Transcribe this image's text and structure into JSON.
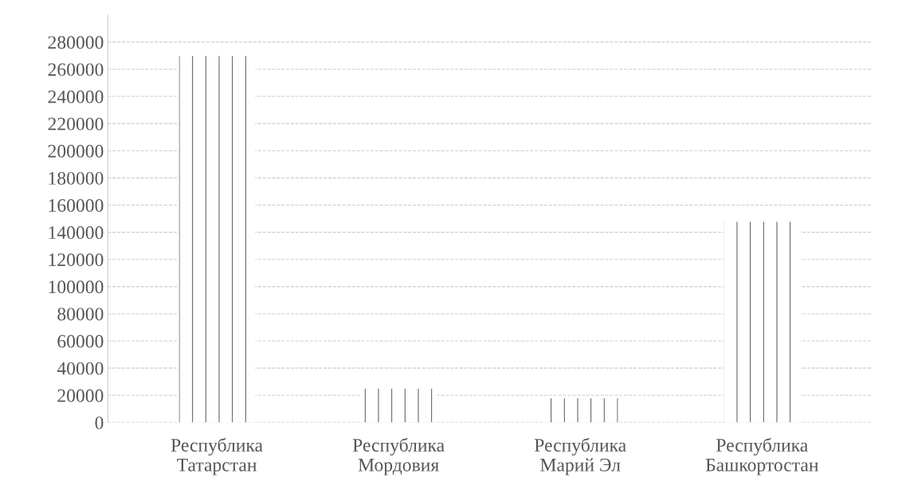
{
  "chart_data": {
    "type": "bar",
    "categories": [
      "Республика\nТатарстан",
      "Республика\nМордовия",
      "Республика\nМарий Эл",
      "Республика\nБашкортостан"
    ],
    "values": [
      270000,
      25000,
      18000,
      148000
    ],
    "color": "#ffffff",
    "ylim": [
      0,
      300000
    ],
    "yticks": [
      0,
      20000,
      40000,
      60000,
      80000,
      100000,
      120000,
      140000,
      160000,
      180000,
      200000,
      220000,
      240000,
      260000,
      280000
    ],
    "grid": "y"
  }
}
